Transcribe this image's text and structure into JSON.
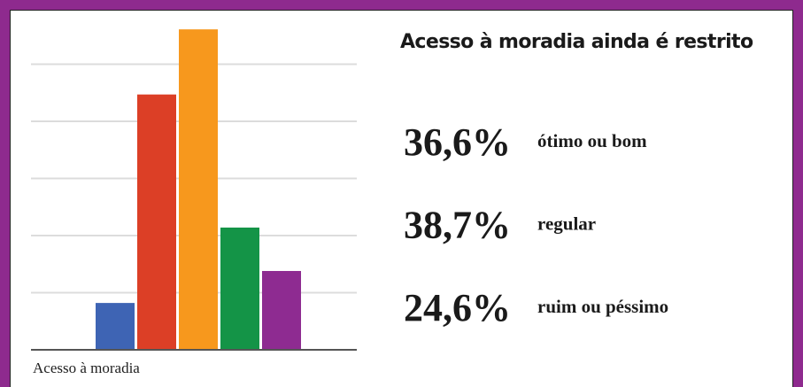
{
  "chart_data": {
    "type": "bar",
    "categories": [
      null,
      null,
      null,
      null,
      null
    ],
    "values": [
      0.82,
      4.47,
      5.61,
      2.14,
      1.38
    ],
    "colors": [
      "#3e64b4",
      "#dc3f26",
      "#f7981d",
      "#149447",
      "#8e2b91"
    ],
    "ylim": [
      0,
      6
    ],
    "yticks": [
      1,
      2,
      3,
      4,
      5
    ],
    "grid": true,
    "xlabel": "Acesso à moradia"
  },
  "panel": {
    "title": "Acesso à moradia ainda é restrito",
    "stats": [
      {
        "value": "36,6%",
        "label": "ótimo ou bom"
      },
      {
        "value": "38,7%",
        "label": "regular"
      },
      {
        "value": "24,6%",
        "label": "ruim ou péssimo"
      }
    ]
  }
}
